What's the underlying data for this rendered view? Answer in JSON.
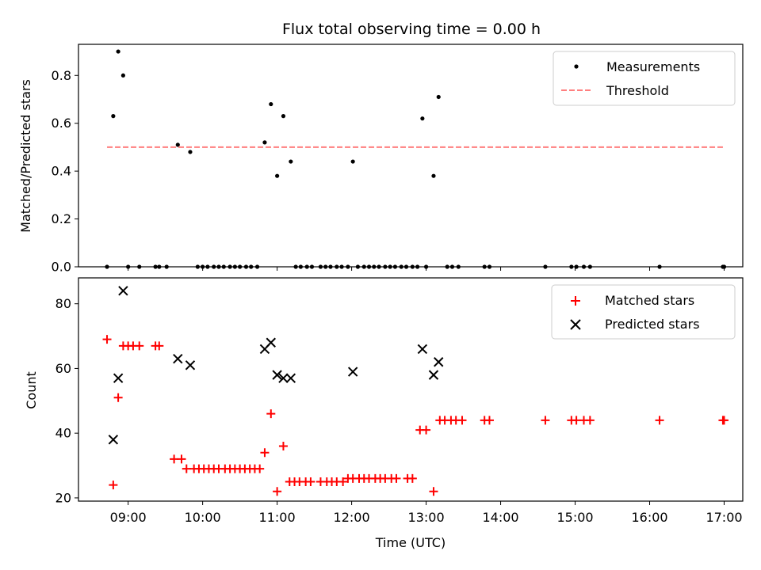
{
  "chart_data": [
    {
      "type": "scatter",
      "title": "Flux total observing time = 0.00 h",
      "ylabel": "Matched/Predicted stars",
      "xlim": [
        "08:20",
        "17:15"
      ],
      "ylim": [
        0,
        0.93
      ],
      "yticks": [
        "0.0",
        "0.2",
        "0.4",
        "0.6",
        "0.8"
      ],
      "legend_position": "upper right",
      "series": [
        {
          "name": "Measurements",
          "style": "dot",
          "color": "#000000",
          "points": [
            [
              "08:43",
              0
            ],
            [
              "08:48",
              0.63
            ],
            [
              "08:52",
              0.9
            ],
            [
              "08:56",
              0.8
            ],
            [
              "09:00",
              0
            ],
            [
              "09:09",
              0
            ],
            [
              "09:22",
              0
            ],
            [
              "09:25",
              0
            ],
            [
              "09:31",
              0
            ],
            [
              "09:40",
              0.51
            ],
            [
              "09:50",
              0.48
            ],
            [
              "09:56",
              0
            ],
            [
              "10:00",
              0
            ],
            [
              "10:04",
              0
            ],
            [
              "10:09",
              0
            ],
            [
              "10:13",
              0
            ],
            [
              "10:17",
              0
            ],
            [
              "10:22",
              0
            ],
            [
              "10:26",
              0
            ],
            [
              "10:30",
              0
            ],
            [
              "10:35",
              0
            ],
            [
              "10:39",
              0
            ],
            [
              "10:44",
              0
            ],
            [
              "10:50",
              0.52
            ],
            [
              "10:55",
              0.68
            ],
            [
              "11:00",
              0.38
            ],
            [
              "11:05",
              0.63
            ],
            [
              "11:11",
              0.44
            ],
            [
              "11:15",
              0
            ],
            [
              "11:19",
              0
            ],
            [
              "11:24",
              0
            ],
            [
              "11:28",
              0
            ],
            [
              "11:35",
              0
            ],
            [
              "11:39",
              0
            ],
            [
              "11:43",
              0
            ],
            [
              "11:48",
              0
            ],
            [
              "11:52",
              0
            ],
            [
              "11:57",
              0
            ],
            [
              "12:01",
              0.44
            ],
            [
              "12:05",
              0
            ],
            [
              "12:10",
              0
            ],
            [
              "12:14",
              0
            ],
            [
              "12:18",
              0
            ],
            [
              "12:22",
              0
            ],
            [
              "12:27",
              0
            ],
            [
              "12:31",
              0
            ],
            [
              "12:35",
              0
            ],
            [
              "12:40",
              0
            ],
            [
              "12:44",
              0
            ],
            [
              "12:49",
              0
            ],
            [
              "12:53",
              0
            ],
            [
              "12:57",
              0.62
            ],
            [
              "13:00",
              0
            ],
            [
              "13:06",
              0.38
            ],
            [
              "13:10",
              0.71
            ],
            [
              "13:17",
              0
            ],
            [
              "13:21",
              0
            ],
            [
              "13:26",
              0
            ],
            [
              "13:47",
              0
            ],
            [
              "13:51",
              0
            ],
            [
              "14:36",
              0
            ],
            [
              "14:57",
              0
            ],
            [
              "15:01",
              0
            ],
            [
              "15:07",
              0
            ],
            [
              "15:12",
              0
            ],
            [
              "16:08",
              0
            ],
            [
              "16:59",
              0
            ],
            [
              "17:00",
              0
            ]
          ]
        },
        {
          "name": "Threshold",
          "style": "dashed-line",
          "color": "#ff7f7f",
          "points": [
            [
              "08:43",
              0.5
            ],
            [
              "16:59",
              0.5
            ]
          ]
        }
      ]
    },
    {
      "type": "scatter",
      "xlabel": "Time (UTC)",
      "ylabel": "Count",
      "xlim": [
        "08:20",
        "17:15"
      ],
      "ylim": [
        19,
        88
      ],
      "yticks": [
        "20",
        "40",
        "60",
        "80"
      ],
      "xticks": [
        "09:00",
        "10:00",
        "11:00",
        "12:00",
        "13:00",
        "14:00",
        "15:00",
        "16:00",
        "17:00"
      ],
      "legend_position": "upper right",
      "series": [
        {
          "name": "Matched stars",
          "marker": "plus",
          "color": "#ff0000",
          "points": [
            [
              "08:43",
              69
            ],
            [
              "08:48",
              24
            ],
            [
              "08:52",
              51
            ],
            [
              "08:56",
              67
            ],
            [
              "09:00",
              67
            ],
            [
              "09:04",
              67
            ],
            [
              "09:09",
              67
            ],
            [
              "09:22",
              67
            ],
            [
              "09:25",
              67
            ],
            [
              "09:37",
              32
            ],
            [
              "09:43",
              32
            ],
            [
              "09:47",
              29
            ],
            [
              "09:53",
              29
            ],
            [
              "09:57",
              29
            ],
            [
              "10:01",
              29
            ],
            [
              "10:05",
              29
            ],
            [
              "10:09",
              29
            ],
            [
              "10:13",
              29
            ],
            [
              "10:18",
              29
            ],
            [
              "10:22",
              29
            ],
            [
              "10:26",
              29
            ],
            [
              "10:30",
              29
            ],
            [
              "10:34",
              29
            ],
            [
              "10:38",
              29
            ],
            [
              "10:42",
              29
            ],
            [
              "10:46",
              29
            ],
            [
              "10:50",
              34
            ],
            [
              "10:55",
              46
            ],
            [
              "11:00",
              22
            ],
            [
              "11:05",
              36
            ],
            [
              "11:10",
              25
            ],
            [
              "11:14",
              25
            ],
            [
              "11:18",
              25
            ],
            [
              "11:23",
              25
            ],
            [
              "11:27",
              25
            ],
            [
              "11:35",
              25
            ],
            [
              "11:40",
              25
            ],
            [
              "11:44",
              25
            ],
            [
              "11:48",
              25
            ],
            [
              "11:53",
              25
            ],
            [
              "11:57",
              26
            ],
            [
              "12:01",
              26
            ],
            [
              "12:06",
              26
            ],
            [
              "12:10",
              26
            ],
            [
              "12:14",
              26
            ],
            [
              "12:19",
              26
            ],
            [
              "12:23",
              26
            ],
            [
              "12:27",
              26
            ],
            [
              "12:32",
              26
            ],
            [
              "12:36",
              26
            ],
            [
              "12:45",
              26
            ],
            [
              "12:49",
              26
            ],
            [
              "12:55",
              41
            ],
            [
              "13:00",
              41
            ],
            [
              "13:06",
              22
            ],
            [
              "13:11",
              44
            ],
            [
              "13:15",
              44
            ],
            [
              "13:20",
              44
            ],
            [
              "13:24",
              44
            ],
            [
              "13:29",
              44
            ],
            [
              "13:47",
              44
            ],
            [
              "13:51",
              44
            ],
            [
              "14:36",
              44
            ],
            [
              "14:57",
              44
            ],
            [
              "15:01",
              44
            ],
            [
              "15:07",
              44
            ],
            [
              "15:12",
              44
            ],
            [
              "16:08",
              44
            ],
            [
              "16:59",
              44
            ],
            [
              "17:00",
              44
            ]
          ]
        },
        {
          "name": "Predicted stars",
          "marker": "x",
          "color": "#000000",
          "points": [
            [
              "08:48",
              38
            ],
            [
              "08:52",
              57
            ],
            [
              "08:56",
              84
            ],
            [
              "09:40",
              63
            ],
            [
              "09:50",
              61
            ],
            [
              "10:50",
              66
            ],
            [
              "10:55",
              68
            ],
            [
              "11:00",
              58
            ],
            [
              "11:05",
              57
            ],
            [
              "11:11",
              57
            ],
            [
              "12:01",
              59
            ],
            [
              "12:57",
              66
            ],
            [
              "13:06",
              58
            ],
            [
              "13:10",
              62
            ]
          ]
        }
      ]
    }
  ]
}
